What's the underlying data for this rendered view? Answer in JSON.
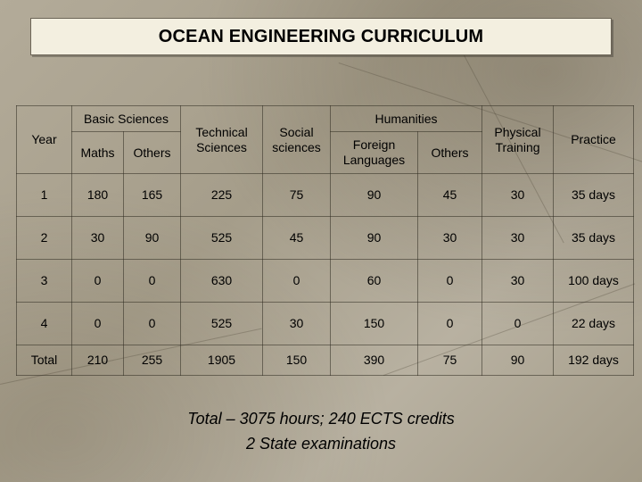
{
  "title": "OCEAN ENGINEERING CURRICULUM",
  "table": {
    "year_header": "Year",
    "basic_sciences_header": "Basic Sciences",
    "maths_header": "Maths",
    "basic_others_header": "Others",
    "technical_sciences_header": "Technical Sciences",
    "social_sciences_header": "Social sciences",
    "humanities_header": "Humanities",
    "foreign_languages_header": "Foreign Languages",
    "humanities_others_header": "Others",
    "physical_training_header": "Physical Training",
    "practice_header": "Practice",
    "rows": [
      [
        "1",
        "180",
        "165",
        "225",
        "75",
        "90",
        "45",
        "30",
        "35 days"
      ],
      [
        "2",
        "30",
        "90",
        "525",
        "45",
        "90",
        "30",
        "30",
        "35 days"
      ],
      [
        "3",
        "0",
        "0",
        "630",
        "0",
        "60",
        "0",
        "30",
        "100 days"
      ],
      [
        "4",
        "0",
        "0",
        "525",
        "30",
        "150",
        "0",
        "0",
        "22 days"
      ],
      [
        "Total",
        "210",
        "255",
        "1905",
        "150",
        "390",
        "75",
        "90",
        "192 days"
      ]
    ]
  },
  "footer": {
    "line1": "Total – 3075 hours;  240 ECTS credits",
    "line2": "2 State examinations"
  }
}
